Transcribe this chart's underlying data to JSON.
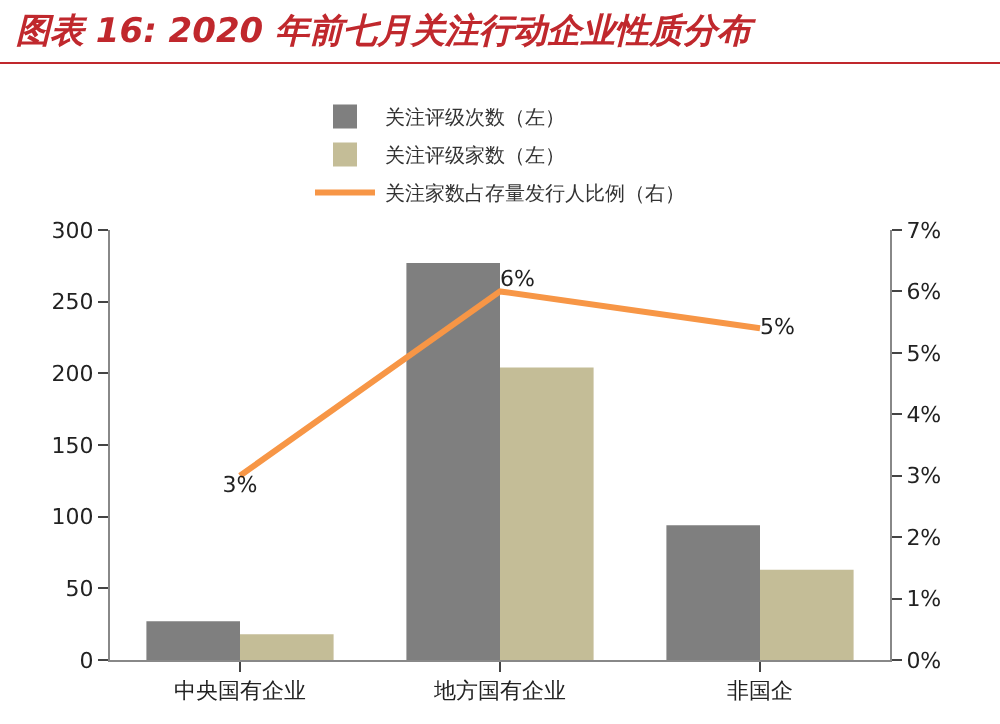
{
  "chart_data": {
    "type": "bar",
    "title": "图表 16: 2020 年前七月关注行动企业性质分布",
    "categories": [
      "中央国有企业",
      "地方国有企业",
      "非国企"
    ],
    "series": [
      {
        "name": "关注评级次数（左）",
        "color": "#7f7f7f",
        "values": [
          27,
          277,
          94
        ]
      },
      {
        "name": "关注评级家数（左）",
        "color": "#c4bd97",
        "values": [
          18,
          204,
          63
        ]
      },
      {
        "name": "关注家数占存量发行人比例（右）",
        "type": "line",
        "axis": "y2",
        "color": "#f79646",
        "values": [
          3.0,
          6.0,
          5.4
        ],
        "value_labels": [
          "3%",
          "6%",
          "5%"
        ]
      }
    ],
    "ylim": [
      0,
      300
    ],
    "yticks": [
      0,
      50,
      100,
      150,
      200,
      250,
      300
    ],
    "y2lim": [
      0,
      7
    ],
    "y2ticks": [
      {
        "value": 0,
        "label": "0%"
      },
      {
        "value": 1,
        "label": "1%"
      },
      {
        "value": 2,
        "label": "2%"
      },
      {
        "value": 3,
        "label": "3%"
      },
      {
        "value": 4,
        "label": "4%"
      },
      {
        "value": 5,
        "label": "5%"
      },
      {
        "value": 6,
        "label": "6%"
      },
      {
        "value": 7,
        "label": "7%"
      }
    ],
    "grid": false,
    "legend": "top",
    "marker": "none"
  }
}
